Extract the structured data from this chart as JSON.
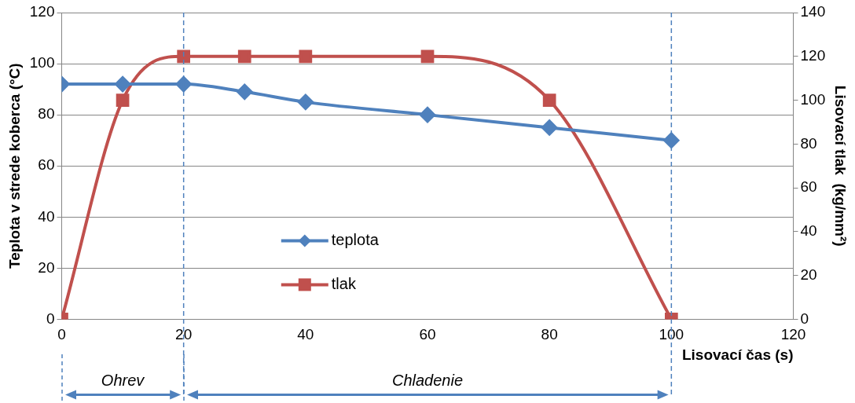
{
  "chart_data": {
    "type": "line",
    "xlabel": "Lisovací čas (s)",
    "ylabel": "Teplota v strede koberca (°C)",
    "y2label": "Lisovací tlak  (kg/mm²)",
    "x": [
      0,
      10,
      20,
      30,
      40,
      60,
      80,
      100
    ],
    "series": [
      {
        "name": "teplota",
        "color": "#4f81bd",
        "marker": "diamond",
        "values": [
          92,
          92,
          92,
          89,
          85,
          80,
          75,
          70
        ]
      },
      {
        "name": "tlak",
        "color": "#c0504d",
        "marker": "square",
        "axis": "y2",
        "values": [
          0,
          100,
          120,
          120,
          120,
          120,
          100,
          0
        ]
      }
    ],
    "xlim": [
      0,
      120
    ],
    "xticks": [
      0,
      20,
      40,
      60,
      80,
      100,
      120
    ],
    "ylim": [
      0,
      120
    ],
    "yticks": [
      0,
      20,
      40,
      60,
      80,
      100,
      120
    ],
    "y2lim": [
      0,
      140
    ],
    "y2ticks": [
      0,
      20,
      40,
      60,
      80,
      100,
      120,
      140
    ],
    "ref_lines": [
      {
        "axis": "x",
        "value": 20,
        "color": "#4f81bd",
        "line_style": "dashed"
      },
      {
        "axis": "x",
        "value": 100,
        "color": "#4f81bd",
        "line_style": "dashed"
      }
    ],
    "annotations": [
      "Ohrev",
      "Chladenie"
    ],
    "grid": "y",
    "legend": "bottom"
  }
}
